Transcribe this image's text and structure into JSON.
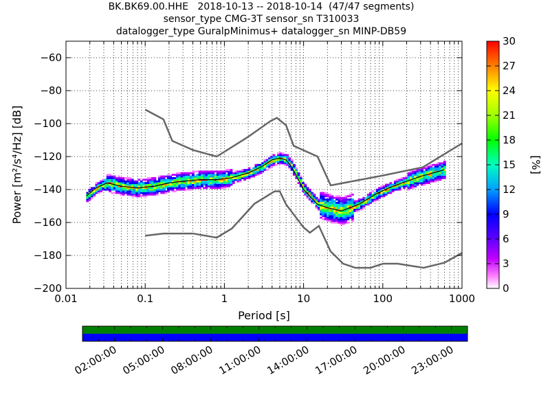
{
  "title_lines": [
    "BK.BK69.00.HHE   2018-10-13 -- 2018-10-14  (47/47 segments)",
    "sensor_type CMG-3T sensor_sn T310033",
    "datalogger_type GuralpMinimus+ datalogger_sn MINP-DB59"
  ],
  "chart_data": {
    "type": "heatmap",
    "xlabel": "Period [s]",
    "ylabel": "Power [m²/s⁴/Hz] [dB]",
    "x_scale": "log",
    "xlim": [
      0.01,
      1000
    ],
    "ylim": [
      -200,
      -50
    ],
    "x_ticks": [
      0.01,
      0.1,
      1,
      10,
      100,
      1000
    ],
    "x_tick_labels": [
      "0.01",
      "0.1",
      "1",
      "10",
      "100",
      "1000"
    ],
    "y_ticks": [
      -200,
      -180,
      -160,
      -140,
      -120,
      -100,
      -80,
      -60
    ],
    "y_tick_labels": [
      "−200",
      "−180",
      "−160",
      "−140",
      "−120",
      "−100",
      "−80",
      "−60"
    ],
    "grid": true,
    "colorbar": {
      "label": "[%]",
      "range": [
        0,
        30
      ],
      "ticks": [
        0,
        3,
        6,
        9,
        12,
        15,
        18,
        21,
        24,
        27,
        30
      ]
    },
    "noise_model_high": {
      "period": [
        0.1,
        0.17,
        0.22,
        0.4,
        0.8,
        2,
        3.8,
        4.6,
        6,
        7.5,
        15,
        22,
        100,
        320,
        1000
      ],
      "power": [
        -91.5,
        -97.4,
        -110.5,
        -116,
        -120,
        -108,
        -98.5,
        -96.5,
        -101,
        -113.5,
        -120,
        -137.5,
        -131.5,
        -126.5,
        -112
      ]
    },
    "noise_model_low": {
      "period": [
        0.1,
        0.17,
        0.4,
        0.8,
        1.24,
        2.4,
        4.3,
        5,
        6,
        10,
        12,
        15.6,
        21.9,
        31.6,
        45,
        70,
        101,
        154,
        328,
        600,
        1000
      ],
      "power": [
        -168,
        -166.7,
        -166.7,
        -169.2,
        -163.7,
        -148.6,
        -141.1,
        -141.1,
        -149,
        -163,
        -166.2,
        -162.1,
        -177.5,
        -185,
        -187.5,
        -187.5,
        -185,
        -185,
        -187.5,
        -184.4,
        -178.5
      ]
    },
    "psd_mode": {
      "period": [
        0.018,
        0.024,
        0.033,
        0.05,
        0.08,
        0.13,
        0.2,
        0.3,
        0.5,
        0.8,
        1.2,
        2,
        3,
        4,
        5,
        6,
        7,
        10,
        15,
        20,
        30,
        50,
        80,
        120,
        200,
        300,
        600
      ],
      "power": [
        -144,
        -139,
        -136,
        -138,
        -139,
        -138,
        -136,
        -135,
        -134,
        -134,
        -133,
        -130,
        -126,
        -122,
        -121,
        -122,
        -126,
        -140,
        -149,
        -151,
        -153,
        -149,
        -143,
        -139,
        -135,
        -132,
        -128
      ]
    },
    "segments_total": 47,
    "segments_used": 47
  },
  "timeline": {
    "tick_labels": [
      "02:00:00",
      "05:00:00",
      "08:00:00",
      "11:00:00",
      "14:00:00",
      "17:00:00",
      "20:00:00",
      "23:00:00"
    ],
    "upper_color": "#008000",
    "lower_color": "#0000ff"
  }
}
